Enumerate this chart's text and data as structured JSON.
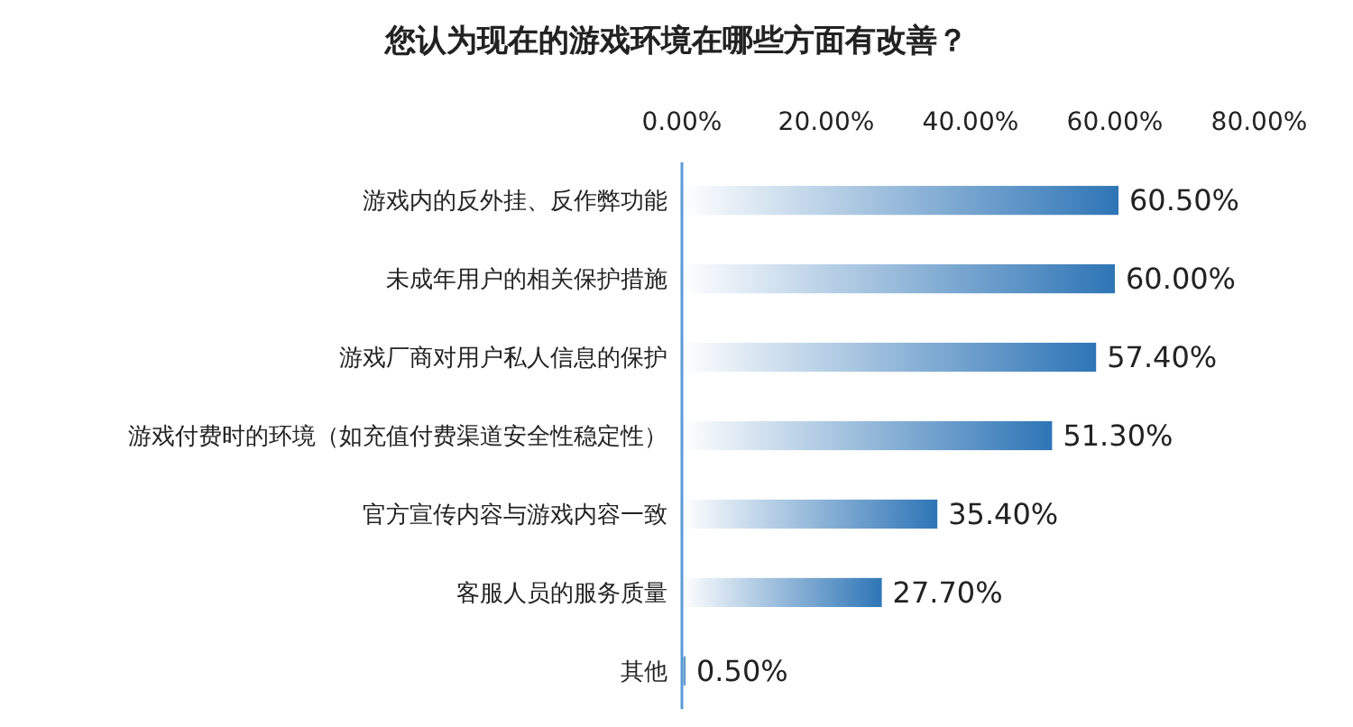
{
  "chart_data": {
    "type": "bar",
    "orientation": "horizontal",
    "title": "您认为现在的游戏环境在哪些方面有改善？",
    "categories": [
      "游戏内的反外挂、反作弊功能",
      "未成年用户的相关保护措施",
      "游戏厂商对用户私人信息的保护",
      "游戏付费时的环境（如充值付费渠道安全性稳定性）",
      "官方宣传内容与游戏内容一致",
      "客服人员的服务质量",
      "其他"
    ],
    "values": [
      60.5,
      60.0,
      57.4,
      51.3,
      35.4,
      27.7,
      0.5
    ],
    "value_labels": [
      "60.50%",
      "60.00%",
      "57.40%",
      "51.30%",
      "35.40%",
      "27.70%",
      "0.50%"
    ],
    "color": "#2e75b6",
    "xlim": [
      0,
      80
    ],
    "xticks": [
      {
        "value": 0,
        "label": "0.00%"
      },
      {
        "value": 20,
        "label": "20.00%"
      },
      {
        "value": 40,
        "label": "40.00%"
      },
      {
        "value": 60,
        "label": "60.00%"
      },
      {
        "value": 80,
        "label": "80.00%"
      }
    ],
    "grid": false
  }
}
